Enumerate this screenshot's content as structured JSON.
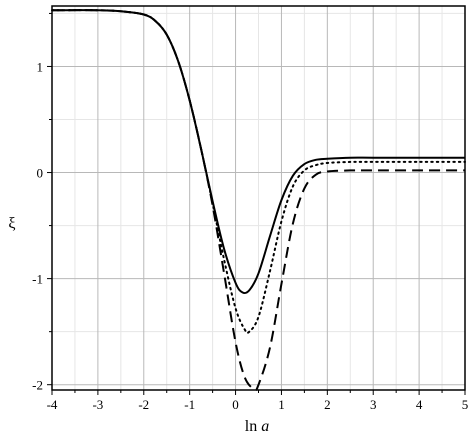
{
  "chart_data": {
    "type": "line",
    "title": "",
    "xlabel": "ln a",
    "ylabel": "ξ",
    "xlim": [
      -4,
      5
    ],
    "ylim": [
      -2.05,
      1.57
    ],
    "xticks": [
      "-4",
      "-3",
      "-2",
      "-1",
      "0",
      "1",
      "2",
      "3",
      "4",
      "5"
    ],
    "yticks": [
      "-2",
      "-1",
      "0",
      "1"
    ],
    "grid": true,
    "legend": "none",
    "series": [
      {
        "style": "solid",
        "x": [
          -4,
          -3,
          -2.5,
          -2,
          -1.75,
          -1.5,
          -1.25,
          -1,
          -0.75,
          -0.5,
          -0.25,
          0,
          0.15,
          0.3,
          0.5,
          0.75,
          1,
          1.25,
          1.5,
          1.75,
          2,
          2.5,
          3,
          4,
          5
        ],
        "y": [
          1.53,
          1.53,
          1.52,
          1.49,
          1.43,
          1.3,
          1.05,
          0.68,
          0.22,
          -0.27,
          -0.72,
          -1.04,
          -1.13,
          -1.11,
          -0.95,
          -0.6,
          -0.26,
          -0.03,
          0.08,
          0.12,
          0.13,
          0.14,
          0.14,
          0.14,
          0.14
        ]
      },
      {
        "style": "dotted",
        "x": [
          -4,
          -3,
          -2.5,
          -2,
          -1.75,
          -1.5,
          -1.25,
          -1,
          -0.75,
          -0.5,
          -0.25,
          0,
          0.2,
          0.3,
          0.5,
          0.75,
          1,
          1.25,
          1.5,
          1.75,
          2,
          2.5,
          3,
          4,
          5
        ],
        "y": [
          1.53,
          1.53,
          1.52,
          1.49,
          1.43,
          1.3,
          1.05,
          0.68,
          0.22,
          -0.29,
          -0.82,
          -1.28,
          -1.48,
          -1.5,
          -1.36,
          -0.93,
          -0.46,
          -0.13,
          0.02,
          0.07,
          0.09,
          0.1,
          0.1,
          0.1,
          0.1
        ]
      },
      {
        "style": "dashed",
        "x": [
          -4,
          -3,
          -2.5,
          -2,
          -1.75,
          -1.5,
          -1.25,
          -1,
          -0.75,
          -0.5,
          -0.25,
          0,
          0.2,
          0.4,
          0.5,
          0.75,
          1,
          1.25,
          1.5,
          1.75,
          2,
          2.5,
          3,
          4,
          5
        ],
        "y": [
          1.53,
          1.53,
          1.52,
          1.49,
          1.43,
          1.3,
          1.05,
          0.68,
          0.22,
          -0.31,
          -0.95,
          -1.6,
          -1.93,
          -2.04,
          -2.0,
          -1.65,
          -1.05,
          -0.48,
          -0.15,
          -0.02,
          0.01,
          0.02,
          0.02,
          0.02,
          0.02
        ]
      }
    ]
  }
}
